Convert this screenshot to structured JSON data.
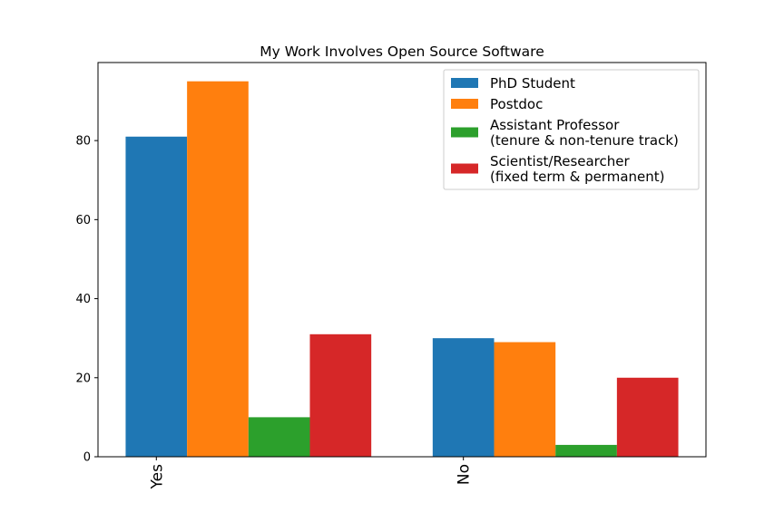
{
  "chart_data": {
    "type": "bar",
    "title": "My Work Involves Open Source Software",
    "xlabel": "",
    "ylabel": "",
    "categories": [
      "Yes",
      "No"
    ],
    "series": [
      {
        "name": [
          "PhD Student"
        ],
        "values": [
          81,
          30
        ],
        "color": "#1f77b4"
      },
      {
        "name": [
          "Postdoc"
        ],
        "values": [
          95,
          29
        ],
        "color": "#ff7f0e"
      },
      {
        "name": [
          "Assistant Professor",
          "(tenure & non-tenure track)"
        ],
        "values": [
          10,
          3
        ],
        "color": "#2ca02c"
      },
      {
        "name": [
          "Scientist/Researcher",
          "(fixed term & permanent)"
        ],
        "values": [
          31,
          20
        ],
        "color": "#d62728"
      }
    ],
    "ylim": [
      0,
      99.75
    ],
    "yticks": [
      0,
      20,
      40,
      60,
      80
    ],
    "grid": false,
    "legend_position": "top-right"
  }
}
